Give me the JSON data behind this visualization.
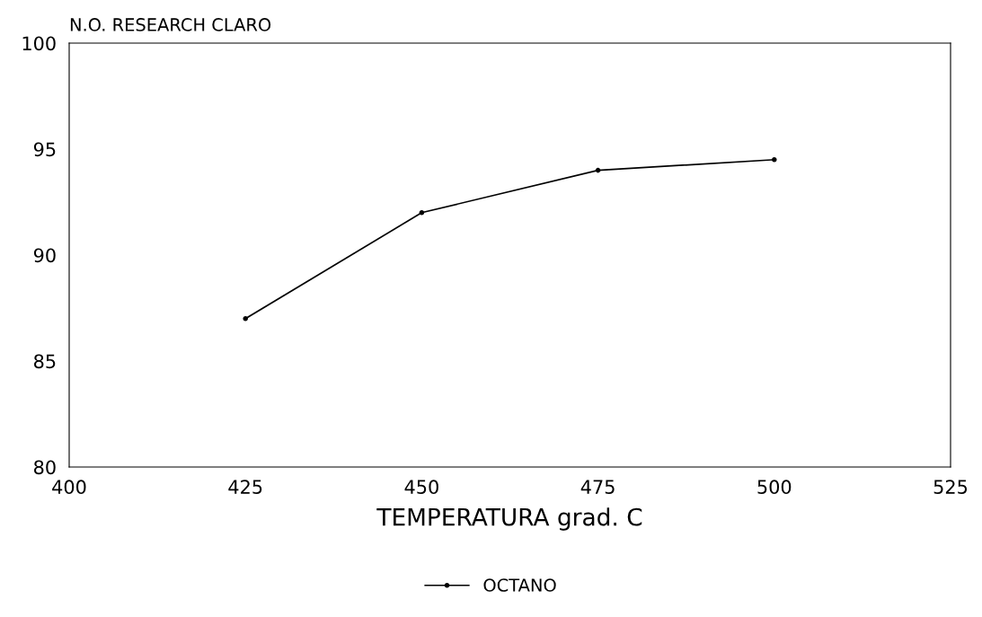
{
  "chart_data": {
    "type": "line",
    "ylabel": "N.O. RESEARCH CLARO",
    "xlabel": "TEMPERATURA grad. C",
    "x": [
      425,
      450,
      475,
      500
    ],
    "series": [
      {
        "name": "OCTANO",
        "color": "#000000",
        "values": [
          87,
          92,
          94,
          94.5
        ]
      }
    ],
    "xlim": [
      400,
      525
    ],
    "xticks": [
      400,
      425,
      450,
      475,
      500,
      525
    ],
    "ylim": [
      80,
      100
    ],
    "yticks": [
      80,
      85,
      90,
      95,
      100
    ],
    "grid": false,
    "legend": "bottom",
    "marker": "circle",
    "line_style": "solid"
  }
}
